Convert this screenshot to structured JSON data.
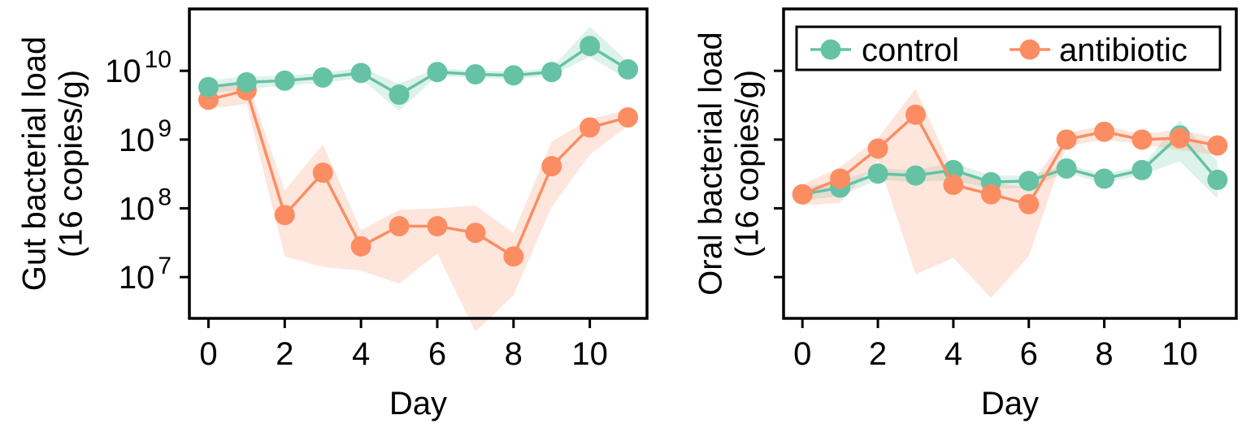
{
  "colors": {
    "control": "#66c2a5",
    "antibiotic": "#fc8d62"
  },
  "chart_data": [
    {
      "type": "line",
      "yscale": "log",
      "xlabel": "Day",
      "ylabel": [
        "Gut bacterial load",
        "(16 copies/g)"
      ],
      "ylim_log10": [
        6.4,
        10.9
      ],
      "xlim": [
        -0.5,
        11.5
      ],
      "x": [
        0,
        1,
        2,
        3,
        4,
        5,
        6,
        7,
        8,
        9,
        10,
        11
      ],
      "xticks": [
        0,
        2,
        4,
        6,
        8,
        10
      ],
      "xtick_labels": [
        "0",
        "2",
        "4",
        "6",
        "8",
        "10"
      ],
      "yticks": [
        {
          "base": "10",
          "exp": "10",
          "log10": 10
        },
        {
          "base": "10",
          "exp": "9",
          "log10": 9
        },
        {
          "base": "10",
          "exp": "8",
          "log10": 8
        },
        {
          "base": "10",
          "exp": "7",
          "log10": 7
        }
      ],
      "series": [
        {
          "key": "control",
          "values": [
            5800000000.0,
            6800000000.0,
            7200000000.0,
            8000000000.0,
            9300000000.0,
            4500000000.0,
            9600000000.0,
            8900000000.0,
            8600000000.0,
            9600000000.0,
            23000000000.0,
            10500000000.0
          ],
          "lower": [
            4600000000.0,
            5500000000.0,
            6000000000.0,
            6800000000.0,
            7700000000.0,
            2600000000.0,
            8500000000.0,
            7900000000.0,
            7500000000.0,
            8500000000.0,
            16000000000.0,
            7500000000.0
          ],
          "upper": [
            7200000000.0,
            8300000000.0,
            8500000000.0,
            9300000000.0,
            11200000000.0,
            6500000000.0,
            10900000000.0,
            10100000000.0,
            9800000000.0,
            10900000000.0,
            44000000000.0,
            13500000000.0
          ]
        },
        {
          "key": "antibiotic",
          "values": [
            3800000000.0,
            5200000000.0,
            80000000.0,
            330000000.0,
            28000000.0,
            55000000.0,
            55000000.0,
            44000000.0,
            20000000.0,
            410000000.0,
            1500000000.0,
            2100000000.0
          ],
          "lower": [
            2800000000.0,
            3300000000.0,
            20000000.0,
            14000000.0,
            12500000.0,
            8000000.0,
            22000000.0,
            1600000.0,
            5500000.0,
            105000000.0,
            600000000.0,
            1600000000.0
          ],
          "upper": [
            5000000000.0,
            7800000000.0,
            180000000.0,
            850000000.0,
            48000000.0,
            95000000.0,
            100000000.0,
            110000000.0,
            44000000.0,
            930000000.0,
            2000000000.0,
            2700000000.0
          ]
        }
      ]
    },
    {
      "type": "line",
      "yscale": "log",
      "xlabel": "Day",
      "ylabel": [
        "Oral bacterial load",
        "(16 copies/g)"
      ],
      "ylim_log10": [
        6.4,
        10.9
      ],
      "xlim": [
        -0.5,
        11.5
      ],
      "x": [
        0,
        1,
        2,
        3,
        4,
        5,
        6,
        7,
        8,
        9,
        10,
        11
      ],
      "xticks": [
        0,
        2,
        4,
        6,
        8,
        10
      ],
      "xtick_labels": [
        "0",
        "2",
        "4",
        "6",
        "8",
        "10"
      ],
      "yticks": [
        {
          "log10": 10
        },
        {
          "log10": 9
        },
        {
          "log10": 8
        },
        {
          "log10": 7
        }
      ],
      "legend": {
        "placement": "top",
        "entries": [
          {
            "key": "control",
            "label": "control"
          },
          {
            "key": "antibiotic",
            "label": "antibiotic"
          }
        ]
      },
      "series": [
        {
          "key": "control",
          "values": [
            160000000.0,
            200000000.0,
            320000000.0,
            300000000.0,
            360000000.0,
            240000000.0,
            250000000.0,
            380000000.0,
            270000000.0,
            360000000.0,
            1150000000.0,
            260000000.0
          ],
          "lower": [
            130000000.0,
            150000000.0,
            260000000.0,
            240000000.0,
            260000000.0,
            190000000.0,
            200000000.0,
            330000000.0,
            230000000.0,
            310000000.0,
            480000000.0,
            140000000.0
          ],
          "upper": [
            200000000.0,
            250000000.0,
            380000000.0,
            360000000.0,
            460000000.0,
            300000000.0,
            300000000.0,
            430000000.0,
            320000000.0,
            410000000.0,
            1900000000.0,
            480000000.0
          ]
        },
        {
          "key": "antibiotic",
          "values": [
            160000000.0,
            270000000.0,
            740000000.0,
            2300000000.0,
            220000000.0,
            160000000.0,
            115000000.0,
            1000000000.0,
            1300000000.0,
            1000000000.0,
            1050000000.0,
            820000000.0
          ],
          "lower": [
            110000000.0,
            120000000.0,
            500000000.0,
            11000000.0,
            19000000.0,
            5000000.0,
            20000000.0,
            800000000.0,
            1000000000.0,
            850000000.0,
            700000000.0,
            600000000.0
          ],
          "upper": [
            220000000.0,
            400000000.0,
            1050000000.0,
            5500000000.0,
            330000000.0,
            240000000.0,
            200000000.0,
            1250000000.0,
            1600000000.0,
            1200000000.0,
            1400000000.0,
            1050000000.0
          ]
        }
      ]
    }
  ]
}
